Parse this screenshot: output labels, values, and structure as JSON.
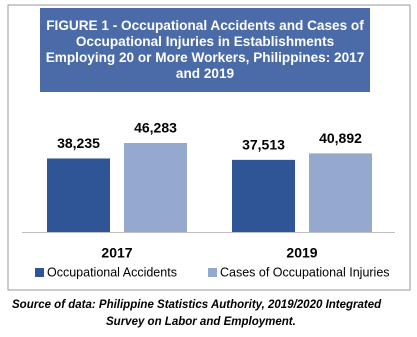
{
  "chart_data": {
    "type": "bar",
    "title": "FIGURE 1 - Occupational Accidents and Cases of Occupational Injuries in Establishments Employing 20 or More Workers, Philippines: 2017 and 2019",
    "categories": [
      "2017",
      "2019"
    ],
    "series": [
      {
        "name": "Occupational Accidents",
        "color": "#2f5597",
        "values": [
          38235,
          37513
        ],
        "value_labels": [
          "38,235",
          "37,513"
        ]
      },
      {
        "name": "Cases of Occupational Injuries",
        "color": "#95a9cf",
        "values": [
          46283,
          40892
        ],
        "value_labels": [
          "46,283",
          "40,892"
        ]
      }
    ],
    "legend": "bottom",
    "source": "Source of data:  Philippine Statistics Authority, 2019/2020 Integrated Survey on Labor and Employment."
  }
}
